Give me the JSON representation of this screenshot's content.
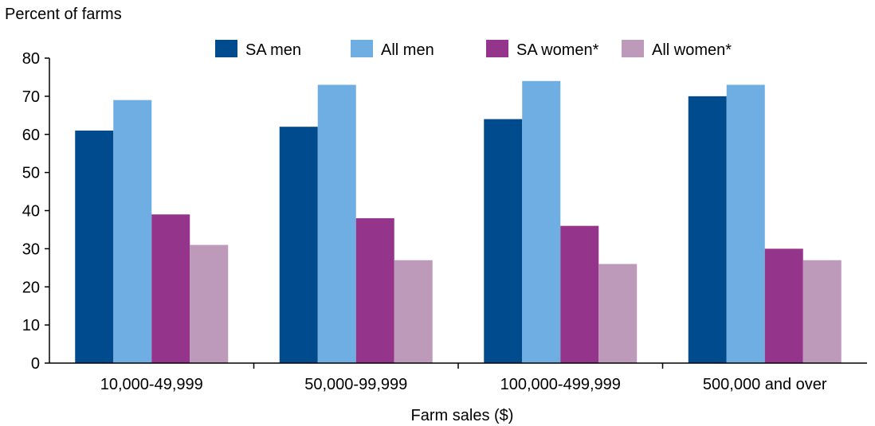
{
  "chart_data": {
    "type": "bar",
    "title": "",
    "ylabel": "Percent of farms",
    "xlabel": "Farm sales ($)",
    "ylim": [
      0,
      80
    ],
    "yticks": [
      0,
      10,
      20,
      30,
      40,
      50,
      60,
      70,
      80
    ],
    "grid": false,
    "legend_position": "top",
    "categories": [
      "10,000-49,999",
      "50,000-99,999",
      "100,000-499,999",
      "500,000 and over"
    ],
    "series": [
      {
        "name": "SA men",
        "color": "#004b8d",
        "values": [
          61,
          62,
          64,
          70
        ]
      },
      {
        "name": "All men",
        "color": "#6eaee3",
        "values": [
          69,
          73,
          74,
          73
        ]
      },
      {
        "name": "SA women*",
        "color": "#94358b",
        "values": [
          39,
          38,
          36,
          30
        ]
      },
      {
        "name": "All women*",
        "color": "#bd9ab9",
        "values": [
          31,
          27,
          26,
          27
        ]
      }
    ]
  }
}
